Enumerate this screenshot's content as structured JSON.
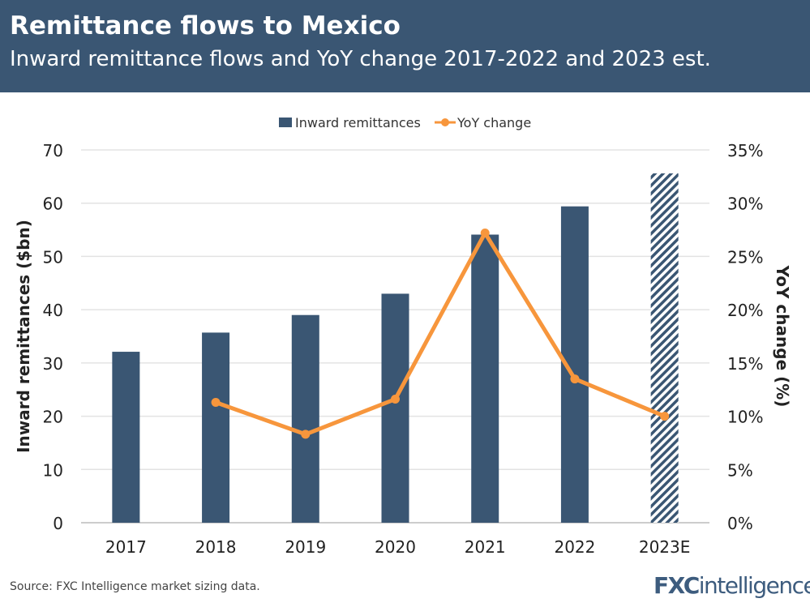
{
  "header": {
    "title": "Remittance flows to Mexico",
    "subtitle": "Inward remittance flows and YoY change 2017-2022 and 2023 est."
  },
  "footer": {
    "source": "Source: FXC Intelligence market sizing data.",
    "logo": "FXCintelligence"
  },
  "chart_data": {
    "type": "bar+line",
    "categories": [
      "2017",
      "2018",
      "2019",
      "2020",
      "2021",
      "2022",
      "2023E"
    ],
    "series": [
      {
        "name": "Inward remittances",
        "type": "bar",
        "axis": "left",
        "values": [
          32.1,
          35.7,
          39.0,
          43.0,
          54.1,
          59.4,
          65.6
        ],
        "color": "#3a5673",
        "estimated": [
          "2023E"
        ]
      },
      {
        "name": "YoY change",
        "type": "line",
        "axis": "right",
        "values": [
          null,
          11.3,
          8.3,
          11.6,
          27.2,
          13.5,
          10.0
        ],
        "color": "#f7963c"
      }
    ],
    "ylabel": "Inward remittances ($bn)",
    "y2label": "YoY change (%)",
    "ylim": [
      0,
      70
    ],
    "y2lim": [
      0,
      35
    ],
    "yticks": [
      "0",
      "10",
      "20",
      "30",
      "40",
      "50",
      "60",
      "70"
    ],
    "y2ticks": [
      "0%",
      "5%",
      "10%",
      "15%",
      "20%",
      "25%",
      "30%",
      "35%"
    ],
    "grid": true,
    "legend": "top"
  }
}
